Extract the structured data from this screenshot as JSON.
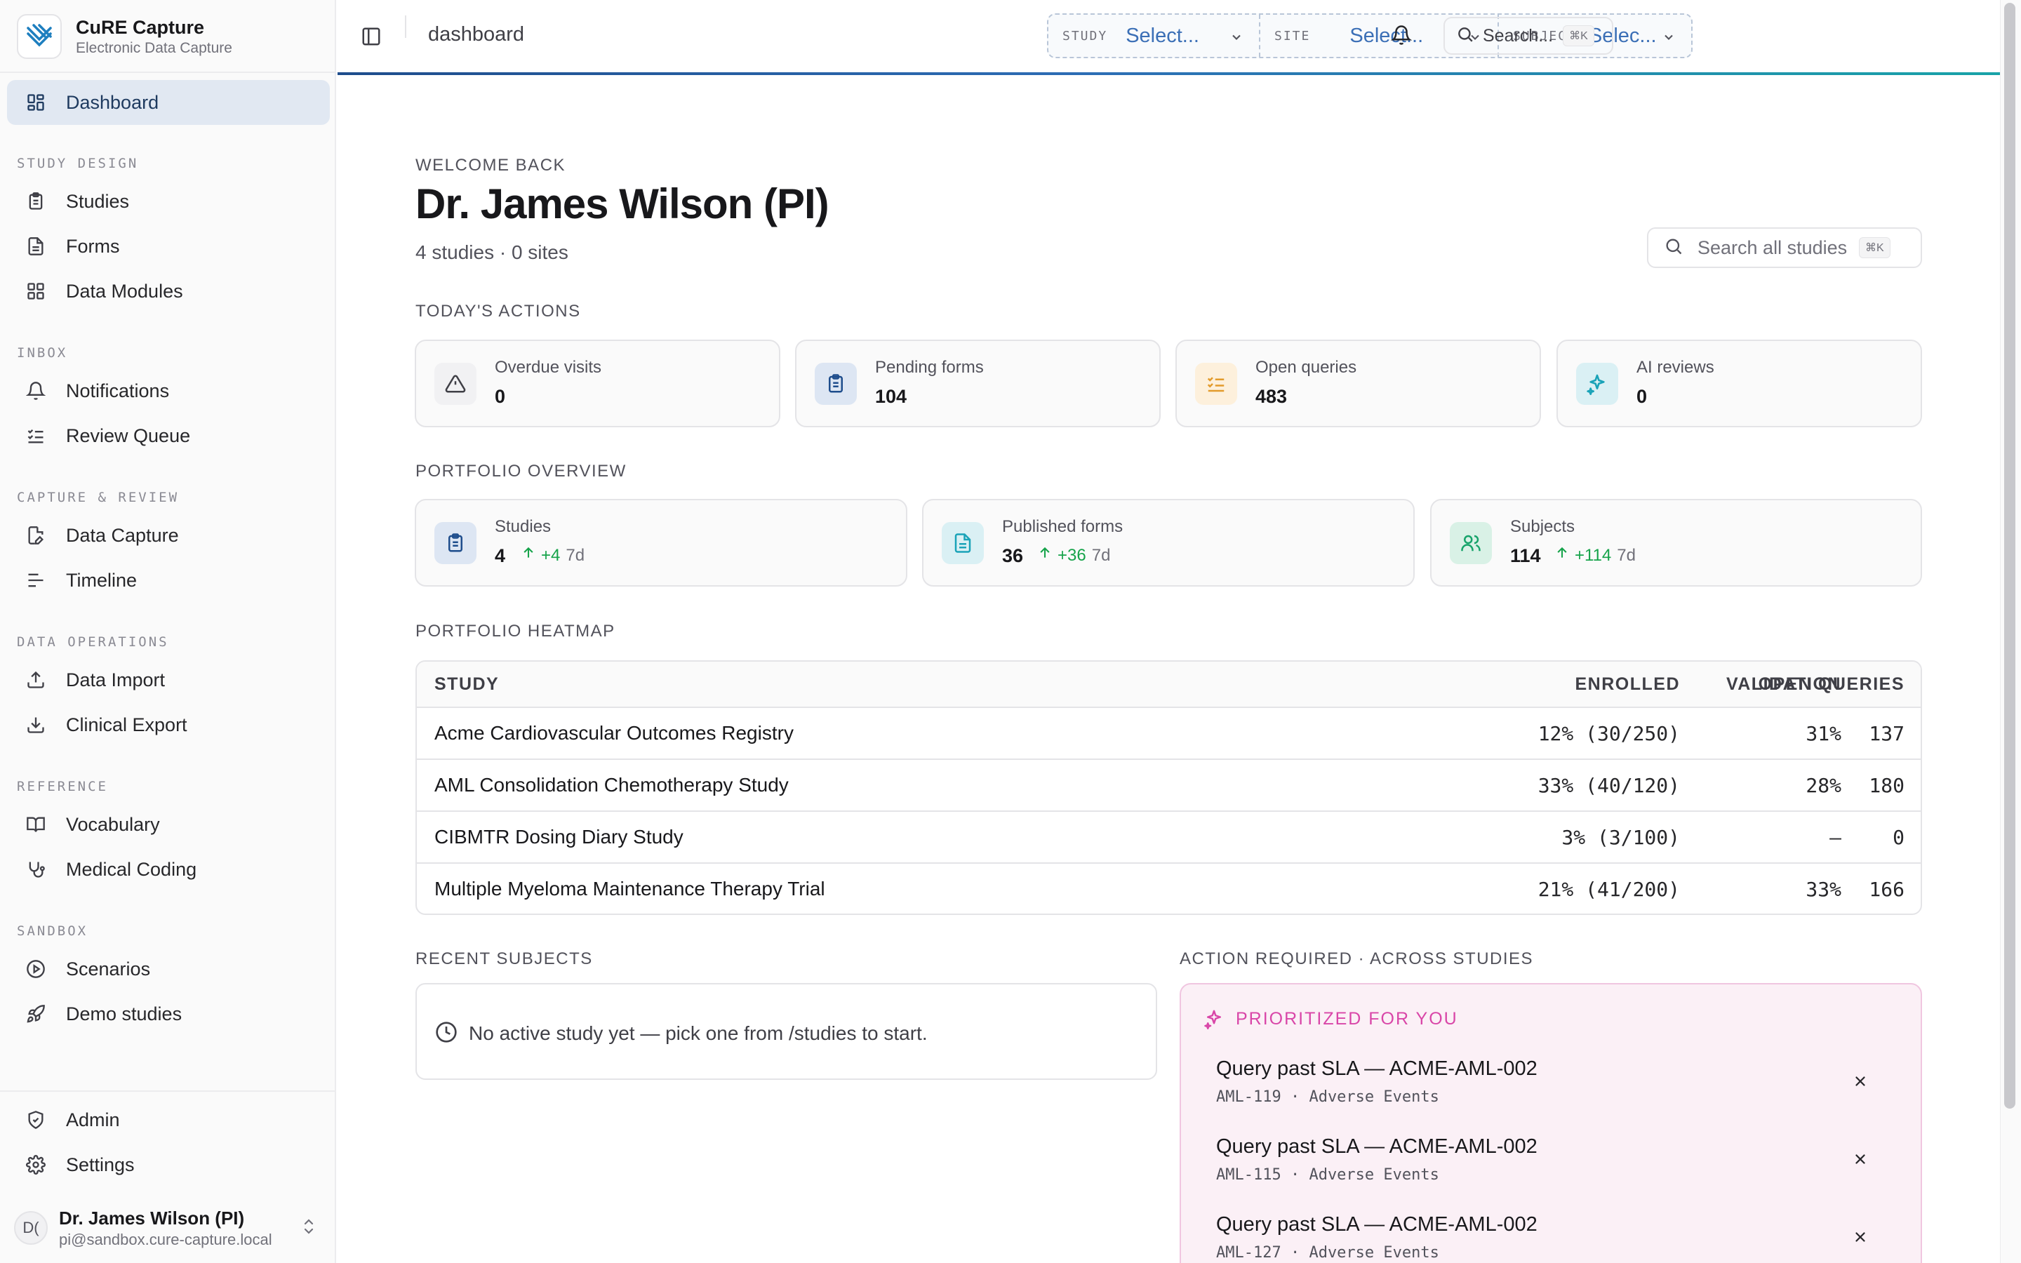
{
  "app": {
    "name": "CuRE Capture",
    "subtitle": "Electronic Data Capture"
  },
  "sidebar": {
    "dashboard": "Dashboard",
    "sections": {
      "study_design": "STUDY DESIGN",
      "inbox": "INBOX",
      "capture_review": "CAPTURE & REVIEW",
      "data_operations": "DATA OPERATIONS",
      "reference": "REFERENCE",
      "sandbox": "SANDBOX"
    },
    "items": {
      "studies": "Studies",
      "forms": "Forms",
      "data_modules": "Data Modules",
      "notifications": "Notifications",
      "review_queue": "Review Queue",
      "data_capture": "Data Capture",
      "timeline": "Timeline",
      "data_import": "Data Import",
      "clinical_export": "Clinical Export",
      "vocabulary": "Vocabulary",
      "medical_coding": "Medical Coding",
      "scenarios": "Scenarios",
      "demo_studies": "Demo studies",
      "admin": "Admin",
      "settings": "Settings"
    },
    "user": {
      "initials": "D(",
      "name": "Dr. James Wilson (PI)",
      "email": "pi@sandbox.cure-capture.local"
    }
  },
  "header": {
    "breadcrumb": "dashboard",
    "context": {
      "study_key": "STUDY",
      "study_value": "Select...",
      "site_key": "SITE",
      "site_value": "Select...",
      "subject_key": "SUBJECT",
      "subject_value": "Selec..."
    },
    "search_label": "Search...",
    "search_kbd": "⌘K"
  },
  "welcome": {
    "eyebrow": "WELCOME BACK",
    "name": "Dr. James Wilson (PI)",
    "summary": "4 studies · 0 sites",
    "search_placeholder": "Search all studies",
    "search_kbd": "⌘K"
  },
  "todays_actions": {
    "title": "TODAY'S ACTIONS",
    "cards": [
      {
        "label": "Overdue visits",
        "value": "0"
      },
      {
        "label": "Pending forms",
        "value": "104"
      },
      {
        "label": "Open queries",
        "value": "483"
      },
      {
        "label": "AI reviews",
        "value": "0"
      }
    ]
  },
  "portfolio_overview": {
    "title": "PORTFOLIO OVERVIEW",
    "cards": [
      {
        "label": "Studies",
        "value": "4",
        "delta": "+4",
        "period": "7d"
      },
      {
        "label": "Published forms",
        "value": "36",
        "delta": "+36",
        "period": "7d"
      },
      {
        "label": "Subjects",
        "value": "114",
        "delta": "+114",
        "period": "7d"
      }
    ]
  },
  "heatmap": {
    "title": "PORTFOLIO HEATMAP",
    "columns": {
      "study": "STUDY",
      "enrolled": "ENROLLED",
      "validation": "VALIDATION",
      "open_queries": "OPEN QUERIES"
    },
    "rows": [
      {
        "study": "Acme Cardiovascular Outcomes Registry",
        "enrolled": "12% (30/250)",
        "validation": "31%",
        "open_queries": "137"
      },
      {
        "study": "AML Consolidation Chemotherapy Study",
        "enrolled": "33% (40/120)",
        "validation": "28%",
        "open_queries": "180"
      },
      {
        "study": "CIBMTR Dosing Diary Study",
        "enrolled": "3% (3/100)",
        "validation": "—",
        "open_queries": "0"
      },
      {
        "study": "Multiple Myeloma Maintenance Therapy Trial",
        "enrolled": "21% (41/200)",
        "validation": "33%",
        "open_queries": "166"
      }
    ]
  },
  "recent_subjects": {
    "title": "RECENT SUBJECTS",
    "empty_message": "No active study yet — pick one from /studies to start."
  },
  "action_required": {
    "title": "ACTION REQUIRED · ACROSS STUDIES",
    "heading": "PRIORITIZED FOR YOU",
    "items": [
      {
        "title": "Query past SLA — ACME-AML-002",
        "meta": "AML-119 · Adverse Events"
      },
      {
        "title": "Query past SLA — ACME-AML-002",
        "meta": "AML-115 · Adverse Events"
      },
      {
        "title": "Query past SLA — ACME-AML-002",
        "meta": "AML-127 · Adverse Events"
      }
    ]
  },
  "colors": {
    "accent": "#1e3a5f",
    "link": "#3b6fb6",
    "positive": "#16a34a",
    "highlight": "#d946a8"
  }
}
